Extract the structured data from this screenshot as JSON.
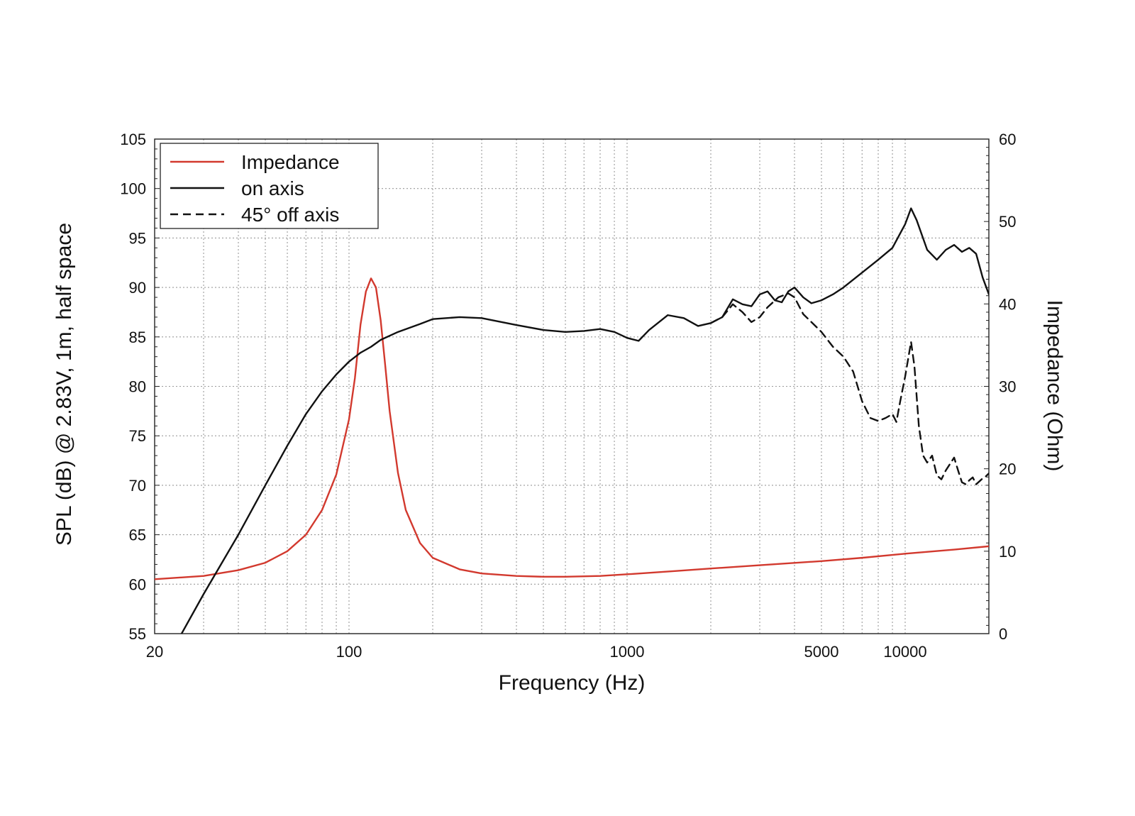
{
  "chart_data": {
    "type": "line",
    "xlabel": "Frequency (Hz)",
    "ylabel": "SPL (dB) @ 2.83V, 1m, half space",
    "y2label": "Impedance (Ohm)",
    "xscale": "log",
    "xlim": [
      20,
      20000
    ],
    "ylim": [
      55,
      105
    ],
    "y2lim": [
      0,
      60
    ],
    "grid": true,
    "legend_position": "top-left",
    "x_tick_labels": [
      "20",
      "100",
      "1000",
      "5000",
      "10000"
    ],
    "x_ticks": [
      20,
      100,
      1000,
      5000,
      10000
    ],
    "y_ticks": [
      55,
      60,
      65,
      70,
      75,
      80,
      85,
      90,
      95,
      100,
      105
    ],
    "y_tick_labels": [
      "55",
      "60",
      "65",
      "70",
      "75",
      "80",
      "85",
      "90",
      "95",
      "100",
      "105"
    ],
    "y2_ticks": [
      0,
      10,
      20,
      30,
      40,
      50,
      60
    ],
    "y2_tick_labels": [
      "0",
      "10",
      "20",
      "30",
      "40",
      "50",
      "60"
    ],
    "series": [
      {
        "name": "Impedance",
        "axis": "right",
        "color": "#d2392e",
        "dash": "solid",
        "x": [
          20,
          30,
          40,
          50,
          60,
          70,
          80,
          90,
          100,
          105,
          110,
          115,
          120,
          125,
          130,
          135,
          140,
          150,
          160,
          180,
          200,
          250,
          300,
          400,
          500,
          600,
          800,
          1000,
          1500,
          2000,
          3000,
          5000,
          7000,
          10000,
          15000,
          20000
        ],
        "y": [
          6.6,
          7.0,
          7.7,
          8.6,
          10.0,
          12.0,
          15.0,
          19.3,
          26.0,
          31.0,
          37.5,
          41.5,
          43.1,
          42.0,
          38.0,
          32.5,
          27.0,
          19.5,
          15.0,
          11.0,
          9.2,
          7.8,
          7.3,
          7.0,
          6.9,
          6.9,
          7.0,
          7.2,
          7.6,
          7.9,
          8.3,
          8.8,
          9.2,
          9.7,
          10.2,
          10.6
        ]
      },
      {
        "name": "on axis",
        "axis": "left",
        "color": "#111111",
        "dash": "solid",
        "x": [
          20,
          25,
          30,
          40,
          50,
          60,
          70,
          80,
          90,
          100,
          110,
          120,
          130,
          150,
          180,
          200,
          250,
          300,
          400,
          500,
          600,
          700,
          800,
          900,
          1000,
          1100,
          1200,
          1400,
          1600,
          1800,
          2000,
          2200,
          2400,
          2600,
          2800,
          3000,
          3200,
          3400,
          3600,
          3800,
          4000,
          4300,
          4600,
          5000,
          5500,
          6000,
          7000,
          8000,
          9000,
          10000,
          10500,
          11000,
          12000,
          13000,
          14000,
          15000,
          16000,
          17000,
          18000,
          19000,
          20000
        ],
        "y": [
          51.0,
          55.0,
          59.0,
          65.0,
          70.0,
          74.0,
          77.2,
          79.5,
          81.2,
          82.5,
          83.4,
          84.0,
          84.7,
          85.5,
          86.3,
          86.8,
          87.0,
          86.9,
          86.2,
          85.7,
          85.5,
          85.6,
          85.8,
          85.5,
          84.9,
          84.6,
          85.7,
          87.2,
          86.9,
          86.1,
          86.4,
          87.0,
          88.8,
          88.3,
          88.1,
          89.3,
          89.6,
          88.7,
          88.5,
          89.6,
          90.0,
          89.0,
          88.4,
          88.7,
          89.3,
          90.0,
          91.5,
          92.8,
          94.0,
          96.4,
          98.0,
          96.8,
          93.8,
          92.8,
          93.8,
          94.3,
          93.6,
          94.0,
          93.4,
          91.0,
          89.3
        ]
      },
      {
        "name": "45° off axis",
        "axis": "left",
        "color": "#111111",
        "dash": "dashed",
        "x": [
          2000,
          2200,
          2400,
          2600,
          2800,
          3000,
          3200,
          3500,
          3800,
          4000,
          4300,
          4600,
          5000,
          5500,
          6000,
          6500,
          7000,
          7500,
          8000,
          8500,
          9000,
          9300,
          9600,
          10000,
          10500,
          10800,
          11200,
          11600,
          12000,
          12500,
          13000,
          13500,
          14000,
          15000,
          15500,
          16000,
          16500,
          17000,
          17500,
          18000,
          18500,
          19000,
          19500,
          20000
        ],
        "y": [
          86.4,
          87.0,
          88.3,
          87.5,
          86.5,
          87.0,
          88.0,
          89.0,
          89.4,
          89.0,
          87.3,
          86.5,
          85.5,
          84.0,
          83.0,
          81.5,
          78.5,
          76.8,
          76.5,
          76.8,
          77.2,
          76.4,
          78.5,
          81.0,
          84.5,
          82.0,
          76.0,
          73.0,
          72.3,
          73.0,
          71.0,
          70.6,
          71.5,
          72.8,
          71.5,
          70.3,
          70.1,
          70.5,
          70.8,
          70.1,
          70.4,
          70.7,
          70.9,
          71.2
        ]
      }
    ]
  }
}
